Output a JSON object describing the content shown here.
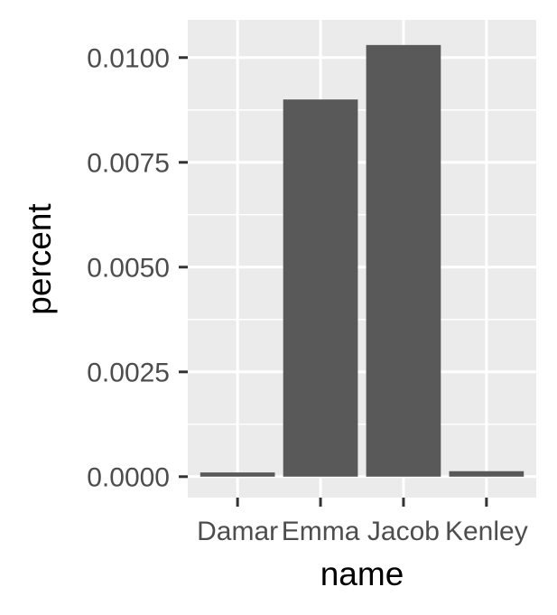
{
  "chart_data": {
    "type": "bar",
    "categories": [
      "Damar",
      "Emma",
      "Jacob",
      "Kenley"
    ],
    "values": [
      0.0001,
      0.009,
      0.0103,
      0.00013
    ],
    "xlabel": "name",
    "ylabel": "percent",
    "ylim": [
      -0.0005,
      0.0109
    ],
    "yticks": [
      0.0,
      0.0025,
      0.005,
      0.0075,
      0.01
    ],
    "ytick_labels": [
      "0.0000",
      "0.0025",
      "0.0050",
      "0.0075",
      "0.0100"
    ],
    "grid": true,
    "colors": {
      "bar": "#595959",
      "panel": "#ebebeb",
      "grid": "#ffffff",
      "tick": "#333333"
    }
  }
}
